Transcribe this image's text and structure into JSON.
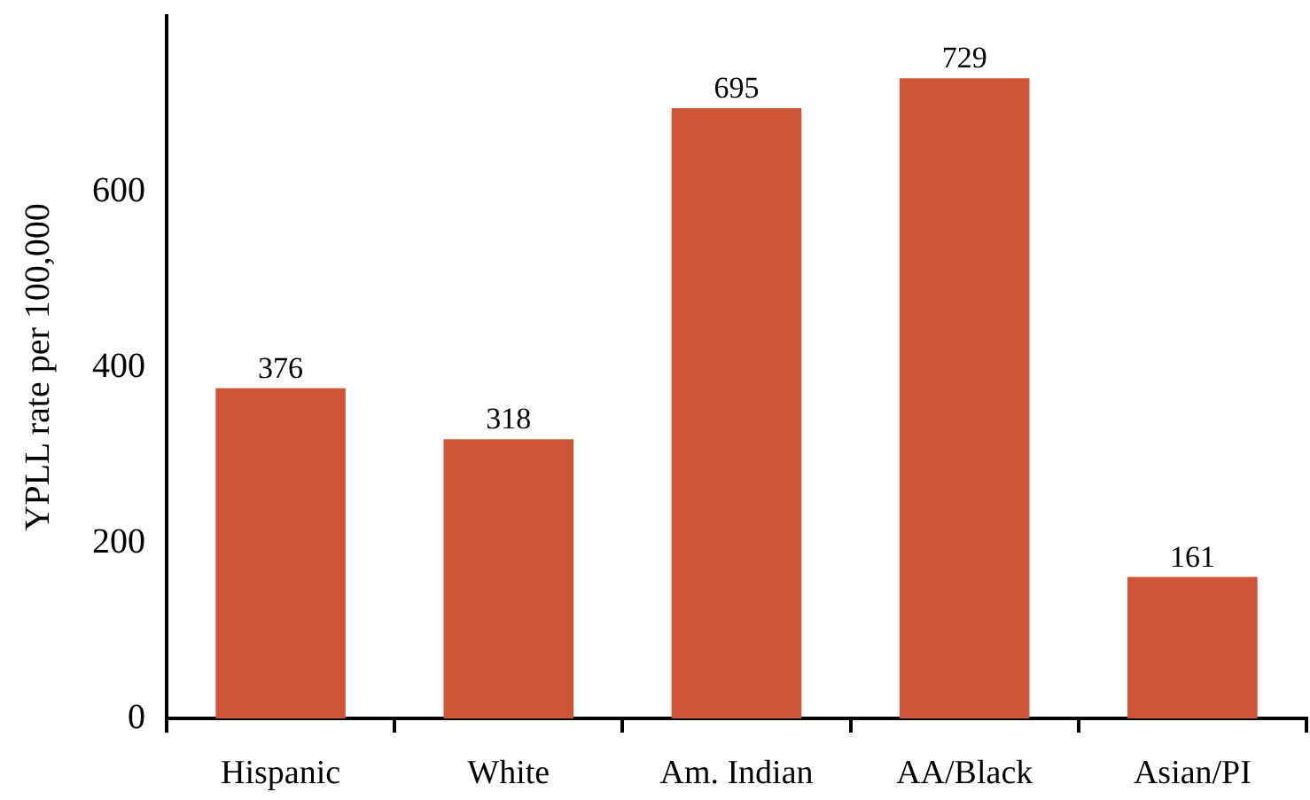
{
  "chart_data": {
    "type": "bar",
    "ylabel": "YPLL rate per 100,000",
    "categories": [
      "Hispanic",
      "White",
      "Am. Indian",
      "AA/Black",
      "Asian/PI"
    ],
    "values": [
      376,
      318,
      695,
      729,
      161
    ],
    "color": "#cf5539",
    "ylim": [
      0,
      800
    ],
    "yticks": [
      0,
      200,
      400,
      600
    ],
    "data_labels": true,
    "legend": false
  }
}
